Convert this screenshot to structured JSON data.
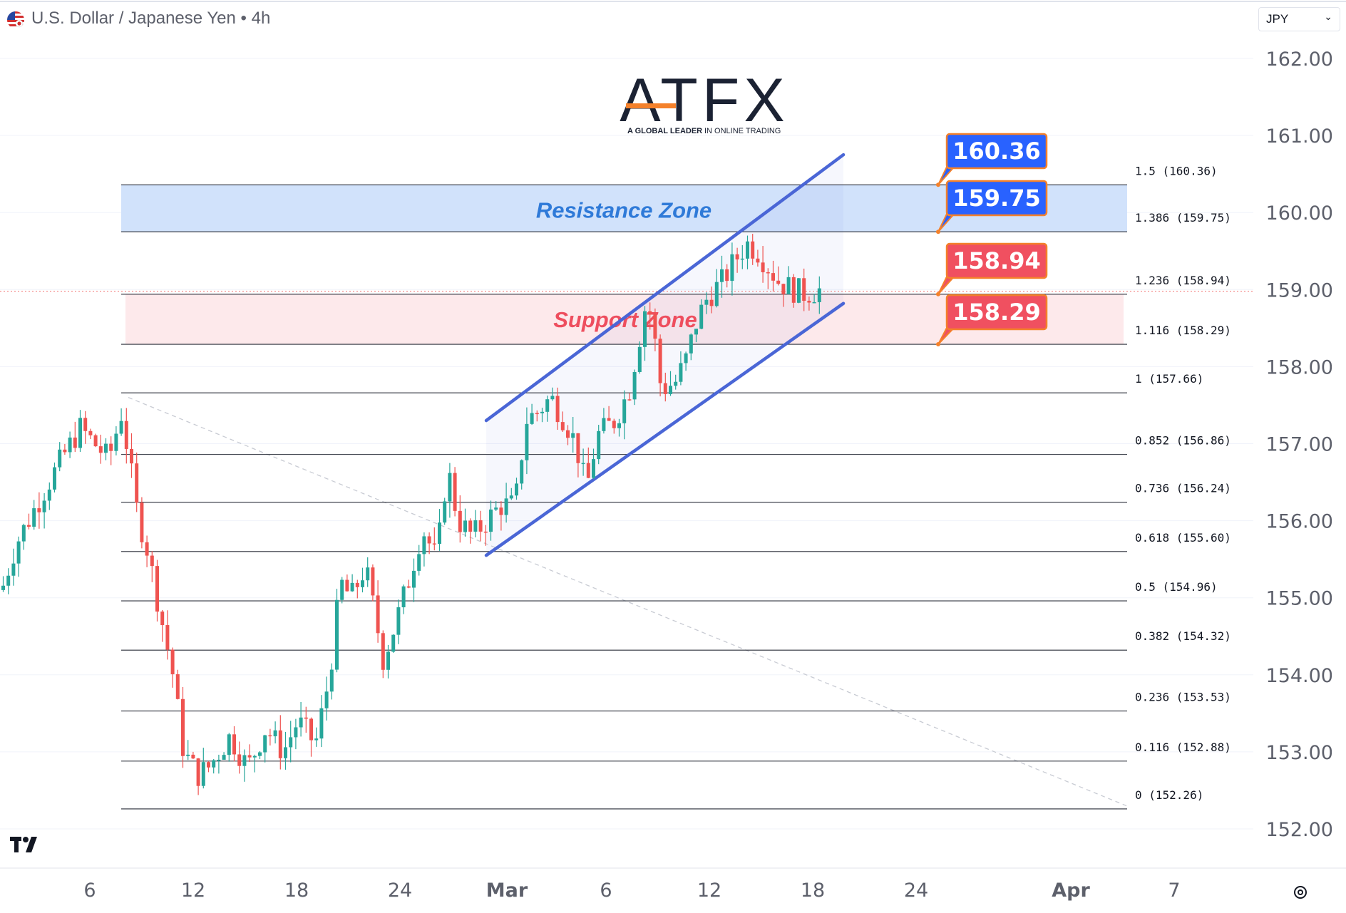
{
  "header": {
    "title": "U.S. Dollar / Japanese Yen • 4h",
    "currency": "JPY",
    "flag_icon": "us-jp-flag-icon"
  },
  "brand": {
    "name": "ATFX",
    "tagline_bold": "A GLOBAL LEADER",
    "tagline_rest": "IN ONLINE TRADING",
    "accent": "#f4812b",
    "color": "#1b2233"
  },
  "colors": {
    "up": "#26a69a",
    "down": "#ef5350",
    "channel": "#4a66d6",
    "resistance_fill": "#cfe0fb",
    "resistance_text": "#2f7ad8",
    "support_fill": "#fde8ea",
    "support_text": "#ee4e5e",
    "blue_label": "#2962ff",
    "red_label": "#f05060",
    "label_border": "#f4812b"
  },
  "chart_data": {
    "type": "candlestick",
    "symbol": "U.S. Dollar / Japanese Yen",
    "timeframe": "4h",
    "ylim": [
      151.8,
      162.4
    ],
    "y_ticks": [
      "162.00",
      "161.00",
      "160.00",
      "159.00",
      "158.00",
      "157.00",
      "156.00",
      "155.00",
      "154.00",
      "153.00",
      "152.00"
    ],
    "x_ticks": [
      "6",
      "12",
      "18",
      "24",
      "Mar",
      "6",
      "12",
      "18",
      "24",
      "Apr",
      "7"
    ],
    "zones": [
      {
        "label": "Resistance Zone",
        "from": 159.75,
        "to": 160.36
      },
      {
        "label": "Support Zone",
        "from": 158.29,
        "to": 158.94
      }
    ],
    "fib_levels": [
      {
        "label": "1.5 (160.36)",
        "value": 160.36
      },
      {
        "label": "1.386 (159.75)",
        "value": 159.75
      },
      {
        "label": "1.236 (158.94)",
        "value": 158.94
      },
      {
        "label": "1.116 (158.29)",
        "value": 158.29
      },
      {
        "label": "1 (157.66)",
        "value": 157.66
      },
      {
        "label": "0.852 (156.86)",
        "value": 156.86
      },
      {
        "label": "0.736 (156.24)",
        "value": 156.24
      },
      {
        "label": "0.618 (155.60)",
        "value": 155.6
      },
      {
        "label": "0.5 (154.96)",
        "value": 154.96
      },
      {
        "label": "0.382 (154.32)",
        "value": 154.32
      },
      {
        "label": "0.236 (153.53)",
        "value": 153.53
      },
      {
        "label": "0.116 (152.88)",
        "value": 152.88
      },
      {
        "label": "0 (152.26)",
        "value": 152.26
      }
    ],
    "price_labels": [
      {
        "text": "160.36",
        "value": 160.36,
        "style": "blue"
      },
      {
        "text": "159.75",
        "value": 159.75,
        "style": "blue"
      },
      {
        "text": "158.94",
        "value": 158.94,
        "style": "red"
      },
      {
        "text": "158.29",
        "value": 158.29,
        "style": "red"
      }
    ],
    "current_price": 158.98,
    "channel": {
      "upper": {
        "from": 157.3,
        "to": 160.75
      },
      "lower": {
        "from": 155.55,
        "to": 158.82
      }
    },
    "grid": true,
    "legend": "none"
  }
}
